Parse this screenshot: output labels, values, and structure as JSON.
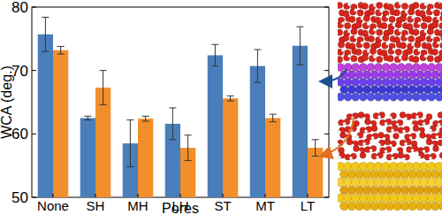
{
  "chart_data": {
    "type": "bar",
    "x_label": "Pores",
    "y_label": "WCA (deg.)",
    "categories": [
      "None",
      "SH",
      "MH",
      "LH",
      "ST",
      "MT",
      "LT"
    ],
    "series": [
      {
        "color": "#4a7ebb",
        "values": [
          75.7,
          62.5,
          58.5,
          61.6,
          72.4,
          70.7,
          73.9
        ],
        "errors": [
          2.7,
          0.3,
          3.7,
          2.5,
          1.7,
          2.6,
          3.0
        ]
      },
      {
        "color": "#f28e2b",
        "values": [
          73.2,
          67.3,
          62.4,
          57.8,
          65.6,
          62.5,
          57.8
        ],
        "errors": [
          0.6,
          2.7,
          0.4,
          2.0,
          0.4,
          0.6,
          1.3
        ]
      }
    ],
    "ylim": [
      50,
      80
    ],
    "yticks": [
      50,
      60,
      70,
      80
    ],
    "grid": false
  }
}
